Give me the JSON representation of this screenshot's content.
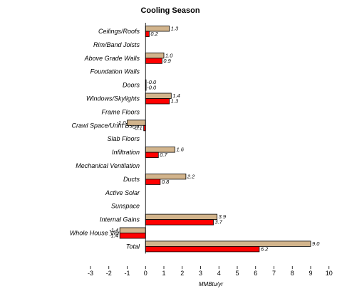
{
  "chart_data": {
    "type": "bar",
    "orientation": "horizontal",
    "title": "Cooling Season",
    "xlabel": "MMBtu/yr",
    "ylabel": "",
    "xlim": [
      -3,
      10
    ],
    "xticks": [
      "-3",
      "-2",
      "-1",
      "0",
      "1",
      "2",
      "3",
      "4",
      "5",
      "6",
      "7",
      "8",
      "9",
      "10"
    ],
    "grid": false,
    "legend": "none",
    "categories": [
      "Ceilings/Roofs",
      "Rim/Band Joists",
      "Above Grade Walls",
      "Foundation Walls",
      "Doors",
      "Windows/Skylights",
      "Frame Floors",
      "Crawl Space/Unht Bsmt",
      "Slab Floors",
      "Infiltration",
      "Mechanical Ventilation",
      "Ducts",
      "Active Solar",
      "Sunspace",
      "Internal Gains",
      "Whole House Ventilation",
      "Total"
    ],
    "series": [
      {
        "color": "#D2B48C",
        "values": [
          1.3,
          null,
          1.0,
          null,
          -0.0,
          1.4,
          null,
          -1.0,
          null,
          1.6,
          null,
          2.2,
          null,
          null,
          3.9,
          -1.4,
          9.0
        ],
        "labels": [
          "1.3",
          "",
          "1.0",
          "",
          "-0.0",
          "1.4",
          "",
          "-1.0",
          "",
          "1.6",
          "",
          "2.2",
          "",
          "",
          "3.9",
          "-1.4",
          "9.0"
        ]
      },
      {
        "color": "#FF0000",
        "values": [
          0.2,
          null,
          0.9,
          null,
          -0.0,
          1.3,
          null,
          -0.1,
          null,
          0.7,
          null,
          0.8,
          null,
          null,
          3.7,
          -1.4,
          6.2
        ],
        "labels": [
          "0.2",
          "",
          "0.9",
          "",
          "-0.0",
          "1.3",
          "",
          "-0.1",
          "",
          "0.7",
          "",
          "0.8",
          "",
          "",
          "3.7",
          "-1.4",
          "6.2"
        ]
      }
    ]
  }
}
